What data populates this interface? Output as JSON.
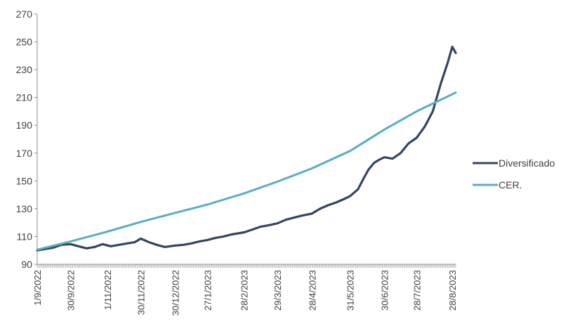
{
  "chart_data": {
    "type": "line",
    "title": "",
    "xlabel": "",
    "ylabel": "",
    "ylim": [
      90,
      270
    ],
    "yticks": [
      90,
      110,
      130,
      150,
      170,
      190,
      210,
      230,
      250,
      270
    ],
    "grid": false,
    "legend_position": "right",
    "x_start": "1/9/2022",
    "x_end": "31/8/2023",
    "xtick_labels": [
      "1/9/2022",
      "30/9/2022",
      "1/11/2022",
      "30/11/2022",
      "30/12/2022",
      "27/1/2023",
      "28/2/2023",
      "29/3/2023",
      "28/4/2023",
      "31/5/2023",
      "30/6/2023",
      "28/7/2023",
      "28/8/2023"
    ],
    "series": [
      {
        "name": "Diversificado",
        "color": "#34465f",
        "points": [
          [
            "1/9/2022",
            100
          ],
          [
            "15/9/2022",
            102
          ],
          [
            "22/9/2022",
            104
          ],
          [
            "30/9/2022",
            104.5
          ],
          [
            "7/10/2022",
            103
          ],
          [
            "14/10/2022",
            101.5
          ],
          [
            "21/10/2022",
            102.5
          ],
          [
            "28/10/2022",
            104.5
          ],
          [
            "4/11/2022",
            103
          ],
          [
            "11/11/2022",
            104
          ],
          [
            "18/11/2022",
            105
          ],
          [
            "25/11/2022",
            106
          ],
          [
            "30/11/2022",
            108.5
          ],
          [
            "7/12/2022",
            106
          ],
          [
            "14/12/2022",
            104
          ],
          [
            "21/12/2022",
            102.5
          ],
          [
            "30/12/2022",
            103.5
          ],
          [
            "6/1/2023",
            104
          ],
          [
            "13/1/2023",
            105
          ],
          [
            "20/1/2023",
            106.5
          ],
          [
            "27/1/2023",
            107.5
          ],
          [
            "3/2/2023",
            109
          ],
          [
            "10/2/2023",
            110
          ],
          [
            "17/2/2023",
            111.5
          ],
          [
            "28/2/2023",
            113
          ],
          [
            "7/3/2023",
            115
          ],
          [
            "14/3/2023",
            117
          ],
          [
            "21/3/2023",
            118
          ],
          [
            "29/3/2023",
            119.5
          ],
          [
            "5/4/2023",
            122
          ],
          [
            "12/4/2023",
            123.5
          ],
          [
            "19/4/2023",
            125
          ],
          [
            "28/4/2023",
            126.5
          ],
          [
            "5/5/2023",
            130
          ],
          [
            "12/5/2023",
            132.5
          ],
          [
            "19/5/2023",
            134.5
          ],
          [
            "26/5/2023",
            137
          ],
          [
            "31/5/2023",
            139
          ],
          [
            "7/6/2023",
            144
          ],
          [
            "12/6/2023",
            152
          ],
          [
            "16/6/2023",
            158
          ],
          [
            "21/6/2023",
            163
          ],
          [
            "26/6/2023",
            165.5
          ],
          [
            "30/6/2023",
            167
          ],
          [
            "7/7/2023",
            166
          ],
          [
            "14/7/2023",
            170
          ],
          [
            "21/7/2023",
            177
          ],
          [
            "28/7/2023",
            181
          ],
          [
            "4/8/2023",
            189
          ],
          [
            "11/8/2023",
            200
          ],
          [
            "18/8/2023",
            220
          ],
          [
            "24/8/2023",
            235
          ],
          [
            "28/8/2023",
            246.5
          ],
          [
            "31/8/2023",
            242
          ]
        ]
      },
      {
        "name": "CER.",
        "color": "#5aaebf",
        "points": [
          [
            "1/9/2022",
            100.5
          ],
          [
            "30/9/2022",
            106.5
          ],
          [
            "1/11/2022",
            113.5
          ],
          [
            "30/11/2022",
            120.5
          ],
          [
            "30/12/2022",
            127
          ],
          [
            "27/1/2023",
            133
          ],
          [
            "28/2/2023",
            141
          ],
          [
            "29/3/2023",
            149.5
          ],
          [
            "28/4/2023",
            159
          ],
          [
            "31/5/2023",
            171.5
          ],
          [
            "30/6/2023",
            187
          ],
          [
            "28/7/2023",
            200
          ],
          [
            "31/8/2023",
            213.5
          ]
        ]
      }
    ]
  }
}
